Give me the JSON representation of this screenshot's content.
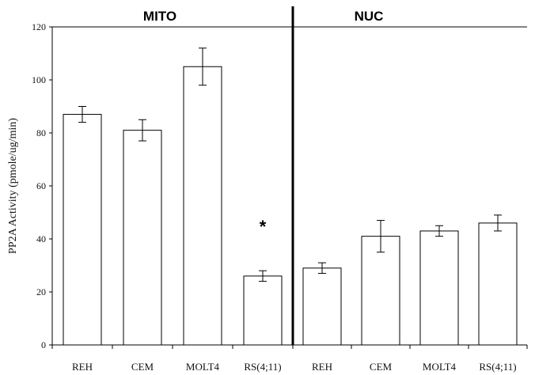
{
  "chart_data": {
    "type": "bar",
    "ylabel": "PP2A Activity (pmole/ug/min)",
    "ylim": [
      0,
      120
    ],
    "yticks": [
      0,
      20,
      40,
      60,
      80,
      100,
      120
    ],
    "grid": false,
    "panels": [
      {
        "title": "MITO",
        "categories": [
          "REH",
          "CEM",
          "MOLT4",
          "RS(4;11)"
        ],
        "values": [
          87,
          81,
          105,
          26
        ],
        "errors": [
          3,
          4,
          7,
          2
        ],
        "annotations": [
          {
            "category": "RS(4;11)",
            "text": "*"
          }
        ]
      },
      {
        "title": "NUC",
        "categories": [
          "REH",
          "CEM",
          "MOLT4",
          "RS(4;11)"
        ],
        "values": [
          29,
          41,
          43,
          46
        ],
        "errors": [
          2,
          6,
          2,
          3
        ],
        "annotations": []
      }
    ],
    "colors": {
      "bar_fill": "#ffffff",
      "bar_stroke": "#000000",
      "divider": "#000000"
    }
  }
}
